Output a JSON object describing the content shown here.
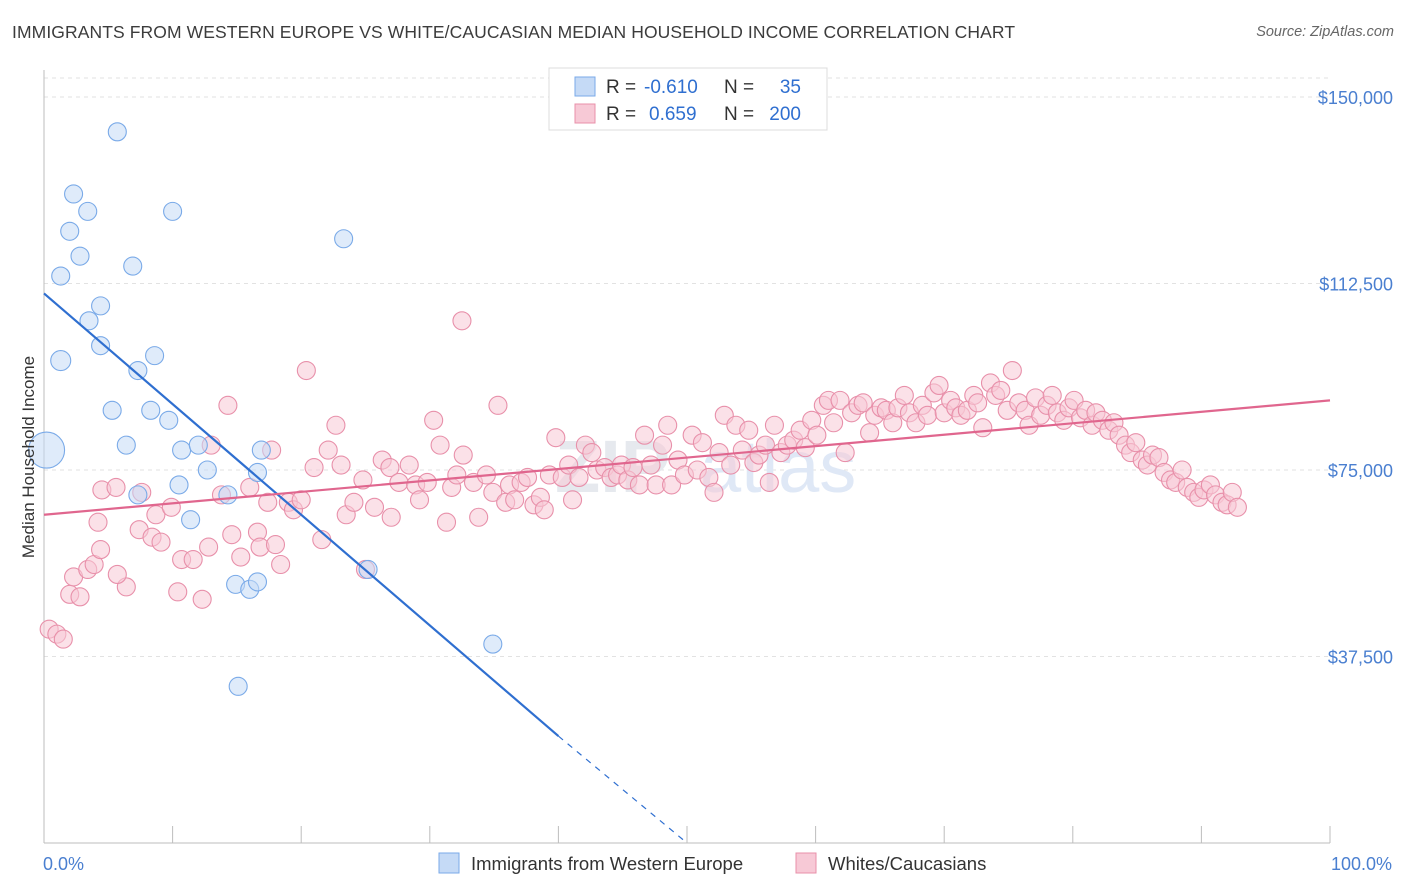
{
  "title": "IMMIGRANTS FROM WESTERN EUROPE VS WHITE/CAUCASIAN MEDIAN HOUSEHOLD INCOME CORRELATION CHART",
  "source": "Source: ZipAtlas.com",
  "watermark": {
    "part1": "ZIP",
    "part2": "atlas"
  },
  "chart_data": {
    "type": "scatter",
    "ylabel": "Median Household Income",
    "xlim": [
      0,
      100
    ],
    "ylim": [
      0,
      155000
    ],
    "x_tick_labels": [
      "0.0%",
      "100.0%"
    ],
    "y_ticks": [
      37500,
      75000,
      112500,
      150000
    ],
    "y_tick_labels": [
      "$37,500",
      "$75,000",
      "$112,500",
      "$150,000"
    ],
    "grid": true,
    "legend_placement": "top-center",
    "legend": [
      {
        "r_label": "R =",
        "r_value": "-0.610",
        "n_label": "N =",
        "n_value": "35"
      },
      {
        "r_label": "R =",
        "r_value": "0.659",
        "n_label": "N =",
        "n_value": "200"
      }
    ],
    "series": [
      {
        "name": "Immigrants from Western Europe",
        "color": "#7aaae8",
        "fill": "#c5daf6",
        "trend": {
          "x0": 0,
          "y0": 110500,
          "x1": 40,
          "y1": 21500,
          "dash_to_x": 50,
          "dash_to_y": 0
        },
        "points": [
          [
            0.2,
            79000,
            18
          ],
          [
            1.3,
            97000,
            10
          ],
          [
            1.3,
            114000,
            9
          ],
          [
            2.3,
            130500,
            9
          ],
          [
            2.0,
            123000,
            9
          ],
          [
            2.8,
            118000,
            9
          ],
          [
            3.4,
            127000,
            9
          ],
          [
            3.5,
            105000,
            9
          ],
          [
            4.4,
            108000,
            9
          ],
          [
            5.7,
            143000,
            9
          ],
          [
            4.4,
            100000,
            9
          ],
          [
            6.9,
            116000,
            9
          ],
          [
            5.3,
            87000,
            9
          ],
          [
            7.3,
            95000,
            9
          ],
          [
            6.4,
            80000,
            9
          ],
          [
            8.6,
            98000,
            9
          ],
          [
            9.7,
            85000,
            9
          ],
          [
            8.3,
            87000,
            9
          ],
          [
            10.0,
            127000,
            9
          ],
          [
            10.5,
            72000,
            9
          ],
          [
            10.7,
            79000,
            9
          ],
          [
            7.3,
            70000,
            9
          ],
          [
            11.4,
            65000,
            9
          ],
          [
            12.0,
            80000,
            9
          ],
          [
            12.7,
            75000,
            9
          ],
          [
            14.3,
            70000,
            9
          ],
          [
            16.6,
            74500,
            9
          ],
          [
            16.9,
            79000,
            9
          ],
          [
            14.9,
            52000,
            9
          ],
          [
            16.0,
            51000,
            9
          ],
          [
            16.6,
            52500,
            9
          ],
          [
            23.3,
            121500,
            9
          ],
          [
            25.2,
            55000,
            9
          ],
          [
            34.9,
            40000,
            9
          ],
          [
            15.1,
            31500,
            9
          ]
        ]
      },
      {
        "name": "Whites/Caucasians",
        "color": "#e890aa",
        "fill": "#f7c9d6",
        "trend": {
          "x0": 0,
          "y0": 66000,
          "x1": 100,
          "y1": 89000
        },
        "points": [
          [
            0.4,
            43000,
            9
          ],
          [
            1.0,
            42000,
            9
          ],
          [
            1.5,
            41000,
            9
          ],
          [
            2.0,
            50000,
            9
          ],
          [
            2.3,
            53500,
            9
          ],
          [
            2.8,
            49500,
            9
          ],
          [
            3.4,
            55000,
            9
          ],
          [
            3.9,
            56000,
            9
          ],
          [
            4.4,
            59000,
            9
          ],
          [
            4.5,
            71000,
            9
          ],
          [
            4.2,
            64500,
            9
          ],
          [
            5.6,
            71500,
            9
          ],
          [
            6.4,
            51500,
            9
          ],
          [
            5.7,
            54000,
            9
          ],
          [
            7.6,
            70500,
            9
          ],
          [
            7.4,
            63000,
            9
          ],
          [
            8.4,
            61500,
            9
          ],
          [
            8.7,
            66000,
            9
          ],
          [
            9.1,
            60500,
            9
          ],
          [
            9.9,
            67500,
            9
          ],
          [
            10.4,
            50500,
            9
          ],
          [
            10.7,
            57000,
            9
          ],
          [
            11.6,
            57000,
            9
          ],
          [
            12.3,
            49000,
            9
          ],
          [
            12.8,
            59500,
            9
          ],
          [
            13.0,
            80000,
            9
          ],
          [
            13.8,
            70000,
            9
          ],
          [
            14.3,
            88000,
            9
          ],
          [
            14.6,
            62000,
            9
          ],
          [
            15.3,
            57500,
            9
          ],
          [
            16.0,
            71500,
            9
          ],
          [
            16.6,
            62500,
            9
          ],
          [
            16.8,
            59500,
            9
          ],
          [
            17.4,
            68500,
            9
          ],
          [
            18.0,
            60000,
            9
          ],
          [
            17.7,
            79000,
            9
          ],
          [
            18.4,
            56000,
            9
          ],
          [
            19.0,
            68500,
            9
          ],
          [
            19.4,
            67000,
            9
          ],
          [
            20.0,
            69000,
            9
          ],
          [
            20.4,
            95000,
            9
          ],
          [
            21.0,
            75500,
            9
          ],
          [
            21.6,
            61000,
            9
          ],
          [
            22.1,
            79000,
            9
          ],
          [
            22.7,
            84000,
            9
          ],
          [
            23.1,
            76000,
            9
          ],
          [
            23.5,
            66000,
            9
          ],
          [
            24.1,
            68500,
            9
          ],
          [
            24.8,
            73000,
            9
          ],
          [
            25.0,
            55000,
            9
          ],
          [
            25.7,
            67500,
            9
          ],
          [
            26.3,
            77000,
            9
          ],
          [
            26.9,
            75500,
            9
          ],
          [
            27.0,
            65500,
            9
          ],
          [
            27.6,
            72500,
            9
          ],
          [
            28.4,
            76000,
            9
          ],
          [
            28.9,
            72000,
            9
          ],
          [
            29.2,
            69000,
            9
          ],
          [
            29.8,
            72500,
            9
          ],
          [
            30.3,
            85000,
            9
          ],
          [
            30.8,
            80000,
            9
          ],
          [
            31.3,
            64500,
            9
          ],
          [
            31.7,
            71500,
            9
          ],
          [
            32.1,
            74000,
            9
          ],
          [
            32.5,
            105000,
            9
          ],
          [
            32.6,
            78000,
            9
          ],
          [
            33.4,
            72500,
            9
          ],
          [
            33.8,
            65500,
            9
          ],
          [
            34.4,
            74000,
            9
          ],
          [
            34.9,
            70500,
            9
          ],
          [
            35.3,
            88000,
            9
          ],
          [
            35.9,
            68500,
            9
          ],
          [
            36.2,
            72000,
            9
          ],
          [
            36.6,
            69000,
            9
          ],
          [
            37.1,
            72500,
            9
          ],
          [
            37.6,
            73500,
            9
          ],
          [
            38.1,
            68000,
            9
          ],
          [
            38.6,
            69500,
            9
          ],
          [
            38.9,
            67000,
            9
          ],
          [
            39.3,
            74000,
            9
          ],
          [
            39.8,
            81500,
            9
          ],
          [
            40.3,
            73500,
            9
          ],
          [
            40.8,
            76000,
            9
          ],
          [
            41.1,
            69000,
            9
          ],
          [
            41.6,
            73500,
            9
          ],
          [
            42.1,
            80000,
            9
          ],
          [
            42.6,
            78500,
            9
          ],
          [
            43.0,
            75000,
            9
          ],
          [
            43.6,
            75500,
            9
          ],
          [
            44.1,
            73500,
            9
          ],
          [
            44.6,
            74000,
            9
          ],
          [
            44.9,
            76000,
            9
          ],
          [
            45.4,
            73000,
            9
          ],
          [
            45.8,
            75500,
            9
          ],
          [
            46.3,
            72000,
            9
          ],
          [
            46.7,
            82000,
            9
          ],
          [
            47.2,
            76000,
            9
          ],
          [
            47.6,
            72000,
            9
          ],
          [
            48.1,
            80000,
            9
          ],
          [
            48.5,
            84000,
            9
          ],
          [
            48.8,
            72000,
            9
          ],
          [
            49.3,
            77000,
            9
          ],
          [
            49.8,
            74000,
            9
          ],
          [
            50.4,
            82000,
            9
          ],
          [
            50.8,
            75000,
            9
          ],
          [
            51.2,
            80500,
            9
          ],
          [
            51.7,
            73500,
            9
          ],
          [
            52.1,
            70500,
            9
          ],
          [
            52.5,
            78500,
            9
          ],
          [
            52.9,
            86000,
            9
          ],
          [
            53.4,
            76000,
            9
          ],
          [
            53.8,
            84000,
            9
          ],
          [
            54.3,
            79000,
            9
          ],
          [
            54.8,
            83000,
            9
          ],
          [
            55.2,
            76500,
            9
          ],
          [
            55.6,
            78000,
            9
          ],
          [
            56.1,
            80000,
            9
          ],
          [
            56.4,
            72500,
            9
          ],
          [
            56.8,
            84000,
            9
          ],
          [
            57.3,
            78500,
            9
          ],
          [
            57.8,
            80000,
            9
          ],
          [
            58.3,
            81000,
            9
          ],
          [
            58.8,
            83000,
            9
          ],
          [
            59.2,
            79500,
            9
          ],
          [
            59.7,
            85000,
            9
          ],
          [
            60.1,
            82000,
            9
          ],
          [
            60.6,
            88000,
            9
          ],
          [
            61.0,
            89000,
            9
          ],
          [
            61.4,
            84500,
            9
          ],
          [
            61.9,
            89000,
            9
          ],
          [
            62.3,
            78500,
            9
          ],
          [
            62.8,
            86500,
            9
          ],
          [
            63.3,
            88000,
            9
          ],
          [
            63.7,
            88500,
            9
          ],
          [
            64.2,
            82500,
            9
          ],
          [
            64.6,
            86000,
            9
          ],
          [
            65.1,
            87500,
            9
          ],
          [
            65.5,
            87000,
            9
          ],
          [
            66.0,
            84500,
            9
          ],
          [
            66.4,
            87500,
            9
          ],
          [
            66.9,
            90000,
            9
          ],
          [
            67.3,
            86500,
            9
          ],
          [
            67.8,
            84500,
            9
          ],
          [
            68.3,
            88000,
            9
          ],
          [
            68.7,
            86000,
            9
          ],
          [
            69.2,
            90500,
            9
          ],
          [
            69.6,
            92000,
            9
          ],
          [
            70.0,
            86500,
            9
          ],
          [
            70.5,
            89000,
            9
          ],
          [
            70.9,
            87500,
            9
          ],
          [
            71.3,
            86000,
            9
          ],
          [
            71.8,
            87000,
            9
          ],
          [
            72.3,
            90000,
            9
          ],
          [
            72.6,
            88500,
            9
          ],
          [
            73.0,
            83500,
            9
          ],
          [
            73.6,
            92500,
            9
          ],
          [
            74.0,
            90000,
            9
          ],
          [
            74.4,
            91000,
            9
          ],
          [
            74.9,
            87000,
            9
          ],
          [
            75.3,
            95000,
            9
          ],
          [
            75.8,
            88500,
            9
          ],
          [
            76.3,
            87000,
            9
          ],
          [
            76.6,
            84000,
            9
          ],
          [
            77.1,
            89500,
            9
          ],
          [
            77.5,
            86000,
            9
          ],
          [
            78.0,
            88000,
            9
          ],
          [
            78.4,
            90000,
            9
          ],
          [
            78.8,
            86500,
            9
          ],
          [
            79.3,
            85000,
            9
          ],
          [
            79.7,
            87500,
            9
          ],
          [
            80.1,
            89000,
            9
          ],
          [
            80.6,
            85500,
            9
          ],
          [
            81.0,
            87000,
            9
          ],
          [
            81.5,
            84000,
            9
          ],
          [
            81.8,
            86500,
            9
          ],
          [
            82.3,
            85000,
            9
          ],
          [
            82.8,
            83000,
            9
          ],
          [
            83.2,
            84500,
            9
          ],
          [
            83.6,
            82000,
            9
          ],
          [
            84.1,
            80000,
            9
          ],
          [
            84.5,
            78500,
            9
          ],
          [
            84.9,
            80500,
            9
          ],
          [
            85.4,
            77000,
            9
          ],
          [
            85.8,
            76000,
            9
          ],
          [
            86.2,
            78000,
            9
          ],
          [
            86.7,
            77500,
            9
          ],
          [
            87.1,
            74500,
            9
          ],
          [
            87.6,
            73000,
            9
          ],
          [
            88.0,
            72500,
            9
          ],
          [
            88.5,
            75000,
            9
          ],
          [
            88.9,
            71500,
            9
          ],
          [
            89.4,
            70500,
            9
          ],
          [
            89.8,
            69500,
            9
          ],
          [
            90.2,
            71000,
            9
          ],
          [
            90.7,
            72000,
            9
          ],
          [
            91.1,
            70000,
            9
          ],
          [
            91.6,
            68500,
            9
          ],
          [
            92.0,
            68000,
            9
          ],
          [
            92.4,
            70500,
            9
          ],
          [
            92.8,
            67500,
            9
          ]
        ]
      }
    ]
  }
}
